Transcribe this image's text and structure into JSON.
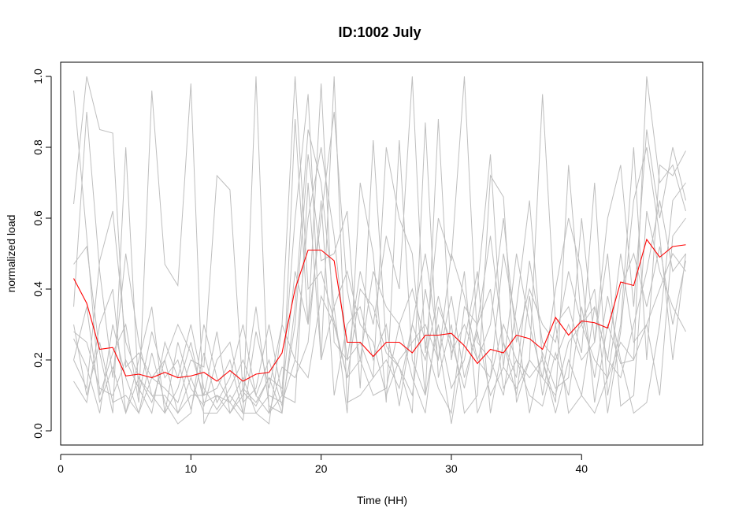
{
  "chart_data": {
    "type": "line",
    "title": "ID:1002 July",
    "xlabel": "Time (HH)",
    "ylabel": "normalized load",
    "xlim": [
      0,
      49.3
    ],
    "ylim": [
      -0.04,
      1.04
    ],
    "xticks": [
      0,
      10,
      20,
      30,
      40
    ],
    "yticks": [
      0.0,
      0.2,
      0.4,
      0.6,
      0.8,
      1.0
    ],
    "xtick_labels": [
      "0",
      "10",
      "20",
      "30",
      "40"
    ],
    "ytick_labels": [
      "0.0",
      "0.2",
      "0.4",
      "0.6",
      "0.8",
      "1.0"
    ],
    "x": [
      1,
      2,
      3,
      4,
      5,
      6,
      7,
      8,
      9,
      10,
      11,
      12,
      13,
      14,
      15,
      16,
      17,
      18,
      19,
      20,
      21,
      22,
      23,
      24,
      25,
      26,
      27,
      28,
      29,
      30,
      31,
      32,
      33,
      34,
      35,
      36,
      37,
      38,
      39,
      40,
      41,
      42,
      43,
      44,
      45,
      46,
      47,
      48
    ],
    "grid": false,
    "colors": {
      "background_series": "#bebebe",
      "mean_series": "#ff0000",
      "axis": "#000000"
    },
    "series": [
      {
        "role": "mean",
        "values": [
          0.43,
          0.36,
          0.23,
          0.235,
          0.155,
          0.16,
          0.15,
          0.165,
          0.15,
          0.155,
          0.165,
          0.14,
          0.17,
          0.14,
          0.16,
          0.165,
          0.22,
          0.4,
          0.51,
          0.51,
          0.48,
          0.25,
          0.25,
          0.21,
          0.25,
          0.25,
          0.22,
          0.27,
          0.27,
          0.275,
          0.24,
          0.19,
          0.23,
          0.22,
          0.27,
          0.26,
          0.23,
          0.32,
          0.27,
          0.31,
          0.305,
          0.29,
          0.42,
          0.41,
          0.54,
          0.49,
          0.52,
          0.525
        ]
      },
      {
        "role": "day",
        "values": [
          0.96,
          0.55,
          0.1,
          0.22,
          0.3,
          0.08,
          0.96,
          0.47,
          0.41,
          0.98,
          0.02,
          0.1,
          0.08,
          0.15,
          0.05,
          0.02,
          0.3,
          1.0,
          0.4,
          0.45,
          0.31,
          0.15,
          0.4,
          0.35,
          0.22,
          0.18,
          0.1,
          0.4,
          0.2,
          0.5,
          0.38,
          0.2,
          0.3,
          0.6,
          0.25,
          0.4,
          0.3,
          0.25,
          0.45,
          0.3,
          0.2,
          0.15,
          0.4,
          0.5,
          0.35,
          0.52,
          0.3,
          0.48
        ]
      },
      {
        "role": "day",
        "values": [
          0.64,
          1.0,
          0.85,
          0.84,
          0.18,
          0.22,
          0.15,
          0.12,
          0.08,
          0.2,
          0.18,
          0.72,
          0.68,
          0.11,
          0.07,
          0.15,
          0.12,
          0.6,
          0.95,
          0.2,
          1.0,
          0.08,
          0.1,
          0.15,
          0.8,
          0.6,
          0.5,
          0.1,
          0.3,
          0.12,
          0.2,
          0.4,
          0.78,
          0.18,
          0.5,
          0.3,
          0.15,
          0.4,
          0.6,
          0.45,
          0.08,
          0.3,
          0.19,
          0.2,
          1.0,
          0.7,
          0.75,
          0.62
        ]
      },
      {
        "role": "day",
        "values": [
          0.2,
          0.12,
          0.48,
          0.62,
          0.25,
          0.15,
          0.08,
          0.2,
          0.3,
          0.22,
          0.1,
          0.28,
          0.05,
          0.1,
          0.35,
          0.07,
          0.05,
          0.88,
          0.3,
          0.98,
          0.25,
          0.2,
          0.45,
          0.3,
          0.55,
          0.4,
          1.0,
          0.22,
          0.6,
          0.48,
          1.0,
          0.25,
          0.2,
          0.1,
          0.35,
          0.65,
          0.2,
          0.08,
          0.75,
          0.3,
          0.4,
          0.05,
          0.28,
          0.65,
          0.8,
          0.55,
          0.2,
          0.5
        ]
      },
      {
        "role": "day",
        "values": [
          0.47,
          0.52,
          0.22,
          0.05,
          0.8,
          0.1,
          0.28,
          0.15,
          0.2,
          0.06,
          0.22,
          0.08,
          0.15,
          0.3,
          0.1,
          0.2,
          0.07,
          0.3,
          0.78,
          0.48,
          0.5,
          0.62,
          0.12,
          0.82,
          0.24,
          0.18,
          0.05,
          0.87,
          0.15,
          0.3,
          0.05,
          0.1,
          0.72,
          0.66,
          0.08,
          0.2,
          0.95,
          0.3,
          0.35,
          0.22,
          0.7,
          0.1,
          0.3,
          0.8,
          0.2,
          0.75,
          0.72,
          0.79
        ]
      },
      {
        "role": "day",
        "values": [
          0.14,
          0.08,
          0.3,
          0.4,
          0.05,
          0.2,
          0.35,
          0.05,
          0.25,
          0.12,
          0.07,
          0.2,
          0.25,
          0.08,
          0.12,
          0.3,
          0.1,
          0.08,
          0.7,
          0.2,
          0.35,
          0.05,
          0.7,
          0.5,
          0.08,
          0.82,
          0.2,
          0.1,
          0.88,
          0.2,
          0.45,
          0.05,
          0.15,
          0.5,
          0.3,
          0.05,
          0.22,
          0.12,
          0.15,
          0.6,
          0.25,
          0.5,
          0.07,
          0.1,
          0.62,
          0.45,
          0.35,
          0.28
        ]
      },
      {
        "role": "day",
        "values": [
          0.28,
          0.25,
          0.12,
          0.1,
          0.2,
          0.12,
          0.05,
          0.25,
          0.15,
          0.3,
          0.12,
          0.06,
          0.12,
          0.2,
          0.1,
          0.05,
          0.18,
          0.15,
          0.25,
          0.65,
          0.1,
          0.3,
          0.35,
          0.2,
          0.3,
          0.07,
          0.3,
          0.5,
          0.25,
          0.02,
          0.25,
          0.45,
          0.05,
          0.25,
          0.1,
          0.38,
          0.1,
          0.3,
          0.05,
          0.1,
          0.35,
          0.2,
          0.5,
          0.25,
          0.3,
          0.1,
          0.55,
          0.6
        ]
      },
      {
        "role": "day",
        "values": [
          0.26,
          0.18,
          0.05,
          0.3,
          0.15,
          0.05,
          0.22,
          0.08,
          0.02,
          0.05,
          0.3,
          0.15,
          0.08,
          0.03,
          0.28,
          0.12,
          0.3,
          0.2,
          0.15,
          0.38,
          0.3,
          0.15,
          0.2,
          0.1,
          0.12,
          0.3,
          0.15,
          0.05,
          0.35,
          0.25,
          0.12,
          0.3,
          0.4,
          0.12,
          0.2,
          0.1,
          0.07,
          0.22,
          0.1,
          0.35,
          0.15,
          0.38,
          0.2,
          0.05,
          0.08,
          0.3,
          0.65,
          0.7
        ]
      },
      {
        "role": "day",
        "values": [
          0.35,
          0.9,
          0.45,
          0.15,
          0.5,
          0.25,
          0.1,
          0.1,
          0.05,
          0.15,
          0.05,
          0.05,
          0.1,
          0.05,
          1.0,
          0.05,
          0.1,
          0.45,
          0.3,
          0.6,
          0.9,
          0.4,
          0.2,
          0.45,
          0.35,
          0.3,
          0.4,
          0.25,
          0.12,
          0.05,
          0.35,
          0.3,
          0.55,
          0.25,
          0.15,
          0.48,
          0.25,
          0.2,
          0.3,
          0.2,
          0.25,
          0.6,
          0.75,
          0.35,
          0.85,
          0.6,
          0.8,
          0.65
        ]
      },
      {
        "role": "day",
        "values": [
          0.2,
          0.35,
          0.08,
          0.18,
          0.05,
          0.15,
          0.1,
          0.05,
          0.12,
          0.25,
          0.08,
          0.1,
          0.05,
          0.12,
          0.08,
          0.15,
          0.05,
          0.35,
          0.85,
          0.7,
          0.35,
          0.45,
          0.3,
          0.25,
          0.1,
          0.2,
          0.25,
          0.3,
          0.2,
          0.38,
          0.15,
          0.28,
          0.1,
          0.18,
          0.12,
          0.2,
          0.15,
          0.1,
          0.25,
          0.3,
          0.35,
          0.2,
          0.15,
          0.3,
          0.45,
          0.65,
          0.45,
          0.5
        ]
      },
      {
        "role": "day",
        "values": [
          0.3,
          0.1,
          0.25,
          0.08,
          0.1,
          0.05,
          0.15,
          0.2,
          0.05,
          0.1,
          0.1,
          0.12,
          0.2,
          0.05,
          0.05,
          0.1,
          0.08,
          0.2,
          0.6,
          0.8,
          0.55,
          0.2,
          0.25,
          0.15,
          0.2,
          0.12,
          0.3,
          0.2,
          0.38,
          0.22,
          0.3,
          0.2,
          0.15,
          0.3,
          0.2,
          0.15,
          0.2,
          0.05,
          0.2,
          0.1,
          0.05,
          0.15,
          0.25,
          0.2,
          0.3,
          0.4,
          0.5,
          0.45
        ]
      }
    ]
  }
}
